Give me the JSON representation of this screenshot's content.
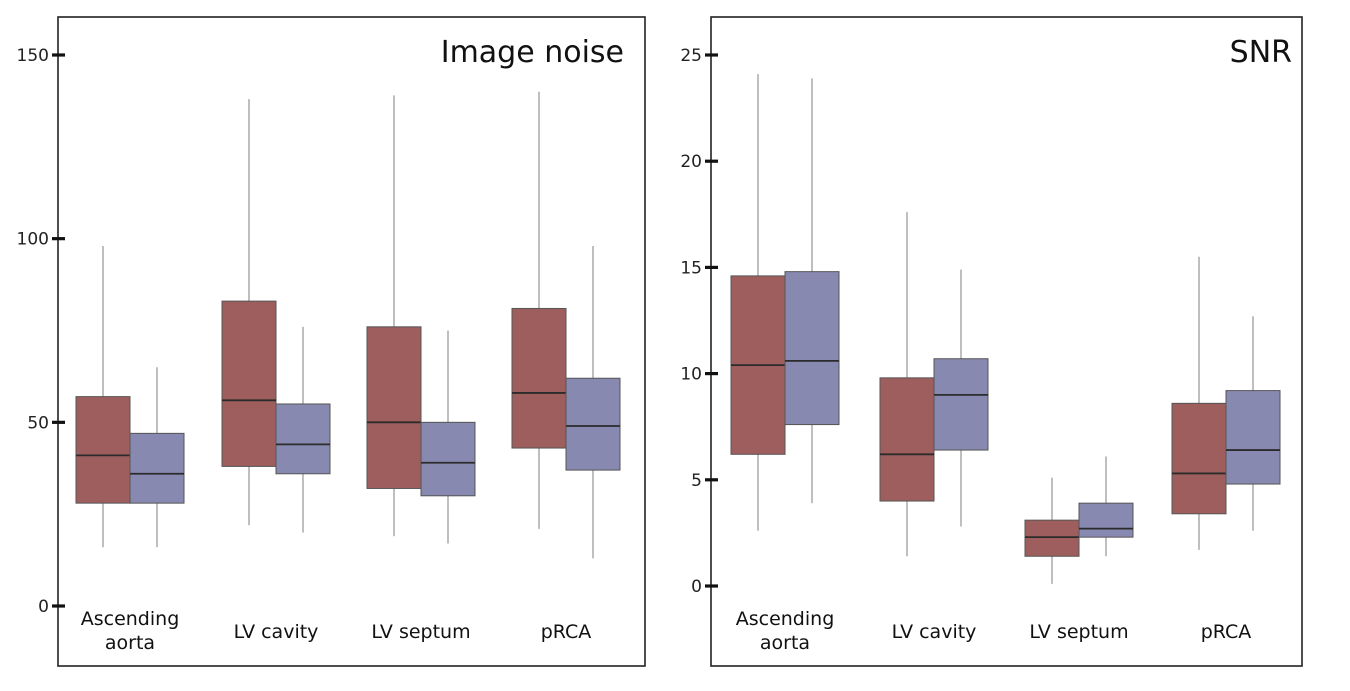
{
  "chart_data": [
    {
      "type": "box",
      "title": "Image noise",
      "categories": [
        "Ascending\naorta",
        "LV cavity",
        "LV septum",
        "pRCA"
      ],
      "ylim": [
        0,
        150
      ],
      "yticks": [
        0,
        50,
        100,
        150
      ],
      "colors": [
        "#9f5e5e",
        "#8889b1"
      ],
      "series": [
        {
          "boxes": [
            {
              "min": 16,
              "q1": 28,
              "median": 41,
              "q3": 57,
              "max": 98
            },
            {
              "min": 22,
              "q1": 38,
              "median": 56,
              "q3": 83,
              "max": 138
            },
            {
              "min": 19,
              "q1": 32,
              "median": 50,
              "q3": 76,
              "max": 139
            },
            {
              "min": 21,
              "q1": 43,
              "median": 58,
              "q3": 81,
              "max": 140
            }
          ]
        },
        {
          "boxes": [
            {
              "min": 16,
              "q1": 28,
              "median": 36,
              "q3": 47,
              "max": 65
            },
            {
              "min": 20,
              "q1": 36,
              "median": 44,
              "q3": 55,
              "max": 76
            },
            {
              "min": 17,
              "q1": 30,
              "median": 39,
              "q3": 50,
              "max": 75
            },
            {
              "min": 13,
              "q1": 37,
              "median": 49,
              "q3": 62,
              "max": 98
            }
          ]
        }
      ]
    },
    {
      "type": "box",
      "title": "SNR",
      "categories": [
        "Ascending\naorta",
        "LV cavity",
        "LV septum",
        "pRCA"
      ],
      "ylim": [
        0,
        25
      ],
      "yticks": [
        0,
        5,
        10,
        15,
        20,
        25
      ],
      "colors": [
        "#9f5e5e",
        "#8889b1"
      ],
      "series": [
        {
          "boxes": [
            {
              "min": 2.6,
              "q1": 6.2,
              "median": 10.4,
              "q3": 14.6,
              "max": 24.1
            },
            {
              "min": 1.4,
              "q1": 4.0,
              "median": 6.2,
              "q3": 9.8,
              "max": 17.6
            },
            {
              "min": 0.1,
              "q1": 1.4,
              "median": 2.3,
              "q3": 3.1,
              "max": 5.1
            },
            {
              "min": 1.7,
              "q1": 3.4,
              "median": 5.3,
              "q3": 8.6,
              "max": 15.5
            }
          ]
        },
        {
          "boxes": [
            {
              "min": 3.9,
              "q1": 7.6,
              "median": 10.6,
              "q3": 14.8,
              "max": 23.9
            },
            {
              "min": 2.8,
              "q1": 6.4,
              "median": 9.0,
              "q3": 10.7,
              "max": 14.9
            },
            {
              "min": 1.4,
              "q1": 2.3,
              "median": 2.7,
              "q3": 3.9,
              "max": 6.1
            },
            {
              "min": 2.6,
              "q1": 4.8,
              "median": 6.4,
              "q3": 9.2,
              "max": 12.7
            }
          ]
        }
      ]
    }
  ]
}
